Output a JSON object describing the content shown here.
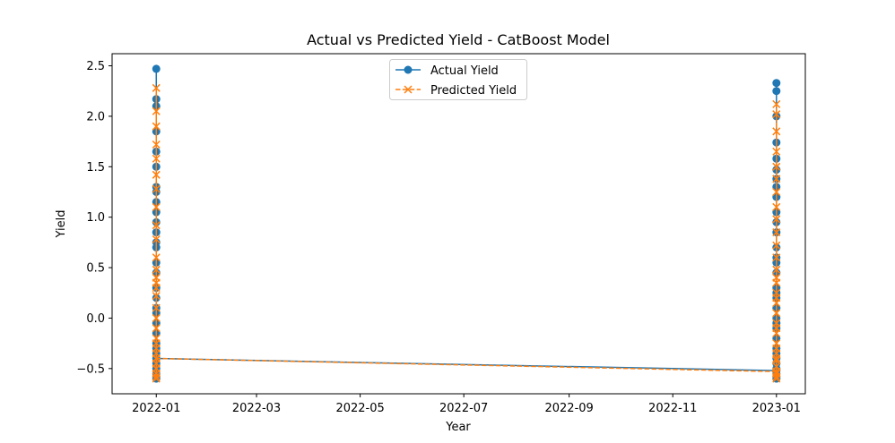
{
  "chart_data": {
    "type": "line",
    "title": "Actual vs Predicted Yield - CatBoost Model",
    "xlabel": "Year",
    "ylabel": "Yield",
    "x_tick_labels": [
      "2022-01",
      "2022-03",
      "2022-05",
      "2022-07",
      "2022-09",
      "2022-11",
      "2023-01"
    ],
    "x_tick_dates": [
      "2022-01-01",
      "2022-03-01",
      "2022-05-01",
      "2022-07-01",
      "2022-09-01",
      "2022-11-01",
      "2023-01-01"
    ],
    "xlim": [
      "2021-12-06",
      "2023-01-18"
    ],
    "y_ticks": [
      -0.5,
      0.0,
      0.5,
      1.0,
      1.5,
      2.0,
      2.5
    ],
    "y_tick_labels": [
      "−0.5",
      "0.0",
      "0.5",
      "1.0",
      "1.5",
      "2.0",
      "2.5"
    ],
    "ylim": [
      -0.75,
      2.62
    ],
    "grid": false,
    "legend_position": "top-center",
    "series": [
      {
        "name": "Actual Yield",
        "color": "#1f77b4",
        "marker": "circle",
        "linestyle": "solid",
        "x": [
          "2022-01-01",
          "2022-01-01",
          "2022-01-01",
          "2022-01-01",
          "2022-01-01",
          "2022-01-01",
          "2022-01-01",
          "2022-01-01",
          "2022-01-01",
          "2022-01-01",
          "2022-01-01",
          "2022-01-01",
          "2022-01-01",
          "2022-01-01",
          "2022-01-01",
          "2022-01-01",
          "2022-01-01",
          "2022-01-01",
          "2022-01-01",
          "2022-01-01",
          "2022-01-01",
          "2022-01-01",
          "2022-01-01",
          "2022-01-01",
          "2022-01-01",
          "2022-01-01",
          "2022-01-01",
          "2022-01-01",
          "2022-01-01",
          "2022-01-01",
          "2022-01-01",
          "2023-01-01",
          "2023-01-01",
          "2023-01-01",
          "2023-01-01",
          "2023-01-01",
          "2023-01-01",
          "2023-01-01",
          "2023-01-01",
          "2023-01-01",
          "2023-01-01",
          "2023-01-01",
          "2023-01-01",
          "2023-01-01",
          "2023-01-01",
          "2023-01-01",
          "2023-01-01",
          "2023-01-01",
          "2023-01-01",
          "2023-01-01",
          "2023-01-01",
          "2023-01-01",
          "2023-01-01",
          "2023-01-01",
          "2023-01-01",
          "2023-01-01",
          "2023-01-01",
          "2023-01-01",
          "2023-01-01",
          "2023-01-01",
          "2023-01-01",
          "2023-01-01",
          "2023-01-01",
          "2023-01-01"
        ],
        "values": [
          -0.6,
          2.47,
          -0.55,
          2.17,
          2.1,
          -0.5,
          1.85,
          1.65,
          1.5,
          1.3,
          1.25,
          1.15,
          1.05,
          0.85,
          0.7,
          0.55,
          0.45,
          0.3,
          0.2,
          0.05,
          -0.05,
          -0.15,
          -0.25,
          -0.35,
          -0.45,
          -0.58,
          0.95,
          0.75,
          0.1,
          -0.3,
          -0.4,
          -0.52,
          2.33,
          2.25,
          -0.6,
          2.0,
          1.74,
          1.58,
          1.47,
          1.38,
          1.3,
          1.2,
          1.05,
          0.95,
          0.85,
          0.7,
          0.55,
          0.45,
          0.3,
          0.2,
          0.1,
          0.0,
          -0.1,
          -0.2,
          -0.3,
          -0.4,
          -0.5,
          -0.58,
          0.6,
          0.25,
          -0.05,
          -0.35,
          -0.45,
          -0.55
        ]
      },
      {
        "name": "Predicted Yield",
        "color": "#ff7f0e",
        "marker": "x",
        "linestyle": "dashed",
        "x": [
          "2022-01-01",
          "2022-01-01",
          "2022-01-01",
          "2022-01-01",
          "2022-01-01",
          "2022-01-01",
          "2022-01-01",
          "2022-01-01",
          "2022-01-01",
          "2022-01-01",
          "2022-01-01",
          "2022-01-01",
          "2022-01-01",
          "2022-01-01",
          "2022-01-01",
          "2022-01-01",
          "2022-01-01",
          "2022-01-01",
          "2022-01-01",
          "2022-01-01",
          "2022-01-01",
          "2022-01-01",
          "2022-01-01",
          "2022-01-01",
          "2022-01-01",
          "2022-01-01",
          "2022-01-01",
          "2022-01-01",
          "2022-01-01",
          "2022-01-01",
          "2022-01-01",
          "2023-01-01",
          "2023-01-01",
          "2023-01-01",
          "2023-01-01",
          "2023-01-01",
          "2023-01-01",
          "2023-01-01",
          "2023-01-01",
          "2023-01-01",
          "2023-01-01",
          "2023-01-01",
          "2023-01-01",
          "2023-01-01",
          "2023-01-01",
          "2023-01-01",
          "2023-01-01",
          "2023-01-01",
          "2023-01-01",
          "2023-01-01",
          "2023-01-01",
          "2023-01-01",
          "2023-01-01",
          "2023-01-01",
          "2023-01-01",
          "2023-01-01",
          "2023-01-01",
          "2023-01-01",
          "2023-01-01",
          "2023-01-01",
          "2023-01-01",
          "2023-01-01",
          "2023-01-01",
          "2023-01-01"
        ],
        "values": [
          -0.6,
          2.28,
          -0.5,
          2.05,
          1.9,
          -0.45,
          1.72,
          1.58,
          1.42,
          1.28,
          1.1,
          0.92,
          0.78,
          0.6,
          0.48,
          0.35,
          0.22,
          0.1,
          0.0,
          -0.1,
          -0.2,
          -0.3,
          -0.4,
          -0.5,
          -0.55,
          -0.58,
          0.4,
          0.3,
          -0.25,
          -0.35,
          -0.4,
          -0.53,
          2.12,
          2.02,
          -0.6,
          1.85,
          1.65,
          1.5,
          1.38,
          1.25,
          1.1,
          0.98,
          0.85,
          0.72,
          0.6,
          0.48,
          0.35,
          0.25,
          0.15,
          0.05,
          -0.05,
          -0.15,
          -0.25,
          -0.35,
          -0.42,
          -0.48,
          -0.55,
          -0.58,
          0.4,
          0.2,
          -0.1,
          -0.3,
          -0.4,
          -0.55
        ]
      }
    ]
  }
}
